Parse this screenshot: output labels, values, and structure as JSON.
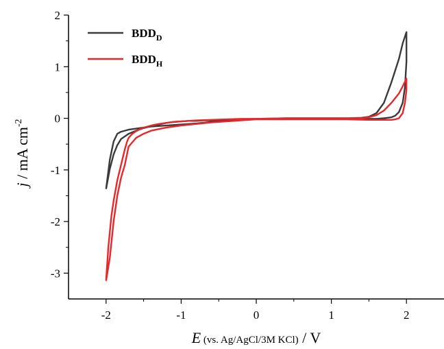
{
  "chart_data": {
    "type": "line",
    "title": "",
    "xlabel": {
      "symbol": "E",
      "note": " (vs. Ag/AgCl/3M KCl)",
      "unit": " / V"
    },
    "ylabel": {
      "symbol": "j",
      "unit": " / mA cm",
      "sup": "-2"
    },
    "xlim": [
      -2.5,
      2.5
    ],
    "ylim": [
      -3.5,
      2.0
    ],
    "xticks": [
      -2,
      -1,
      0,
      1,
      2
    ],
    "xtick_labels": [
      "-2",
      "-1",
      "0",
      "1",
      "2"
    ],
    "yticks": [
      -3,
      -2,
      -1,
      0,
      1,
      2
    ],
    "ytick_labels": [
      "-3",
      "-2",
      "-1",
      "0",
      "1",
      "2"
    ],
    "grid": false,
    "legend_position": "top-left",
    "series": [
      {
        "name": "BDD",
        "subscript": "D",
        "color": "#3a3a3a",
        "x": [
          -2.0,
          -1.95,
          -1.9,
          -1.85,
          -1.8,
          -1.7,
          -1.6,
          -1.5,
          -1.4,
          -1.3,
          -1.2,
          -1.1,
          -1.0,
          -0.9,
          -0.8,
          -0.7,
          -0.6,
          -0.5,
          -0.4,
          -0.2,
          0.0,
          0.4,
          0.8,
          1.2,
          1.4,
          1.5,
          1.6,
          1.7,
          1.8,
          1.9,
          1.95,
          2.0,
          2.0,
          1.98,
          1.95,
          1.9,
          1.85,
          1.8,
          1.75,
          1.7,
          1.6,
          1.5,
          1.2,
          0.8,
          0.4,
          0.0,
          -0.2,
          -0.4,
          -0.6,
          -0.8,
          -1.0,
          -1.2,
          -1.4,
          -1.5,
          -1.6,
          -1.7,
          -1.8,
          -1.85,
          -1.9,
          -1.95,
          -2.0
        ],
        "y": [
          -1.37,
          -0.98,
          -0.7,
          -0.52,
          -0.4,
          -0.3,
          -0.24,
          -0.19,
          -0.15,
          -0.12,
          -0.09,
          -0.07,
          -0.06,
          -0.05,
          -0.05,
          -0.04,
          -0.04,
          -0.03,
          -0.03,
          -0.02,
          -0.01,
          0.0,
          0.0,
          0.0,
          0.01,
          0.03,
          0.1,
          0.3,
          0.7,
          1.15,
          1.45,
          1.67,
          1.1,
          0.6,
          0.3,
          0.12,
          0.05,
          0.02,
          0.01,
          0.0,
          -0.01,
          -0.01,
          -0.01,
          -0.01,
          -0.01,
          -0.01,
          -0.03,
          -0.05,
          -0.07,
          -0.1,
          -0.12,
          -0.14,
          -0.16,
          -0.18,
          -0.2,
          -0.22,
          -0.26,
          -0.3,
          -0.45,
          -0.8,
          -1.37
        ]
      },
      {
        "name": "BDD",
        "subscript": "H",
        "color": "#e8272b",
        "x": [
          -2.0,
          -1.97,
          -1.93,
          -1.9,
          -1.85,
          -1.8,
          -1.75,
          -1.72,
          -1.7,
          -1.65,
          -1.6,
          -1.55,
          -1.5,
          -1.4,
          -1.3,
          -1.2,
          -1.1,
          -1.0,
          -0.9,
          -0.8,
          -0.6,
          -0.4,
          -0.2,
          0.0,
          0.4,
          0.8,
          1.2,
          1.4,
          1.5,
          1.6,
          1.7,
          1.8,
          1.9,
          1.95,
          2.0,
          2.0,
          1.98,
          1.95,
          1.9,
          1.85,
          1.8,
          1.7,
          1.6,
          1.5,
          1.2,
          0.8,
          0.4,
          0.0,
          -0.2,
          -0.4,
          -0.6,
          -0.8,
          -1.0,
          -1.2,
          -1.4,
          -1.5,
          -1.6,
          -1.7,
          -1.75,
          -1.8,
          -1.85,
          -1.9,
          -1.95,
          -2.0
        ],
        "y": [
          -3.15,
          -2.5,
          -1.9,
          -1.6,
          -1.2,
          -0.9,
          -0.6,
          -0.45,
          -0.38,
          -0.3,
          -0.25,
          -0.21,
          -0.18,
          -0.14,
          -0.11,
          -0.09,
          -0.07,
          -0.06,
          -0.05,
          -0.04,
          -0.03,
          -0.02,
          -0.01,
          -0.01,
          0.0,
          0.0,
          0.0,
          0.0,
          0.02,
          0.06,
          0.15,
          0.3,
          0.48,
          0.62,
          0.77,
          0.55,
          0.3,
          0.1,
          0.0,
          -0.02,
          -0.03,
          -0.03,
          -0.03,
          -0.03,
          -0.02,
          -0.02,
          -0.02,
          -0.02,
          -0.04,
          -0.06,
          -0.08,
          -0.11,
          -0.14,
          -0.18,
          -0.24,
          -0.3,
          -0.38,
          -0.55,
          -0.9,
          -1.15,
          -1.5,
          -2.0,
          -2.7,
          -3.15
        ]
      }
    ]
  }
}
